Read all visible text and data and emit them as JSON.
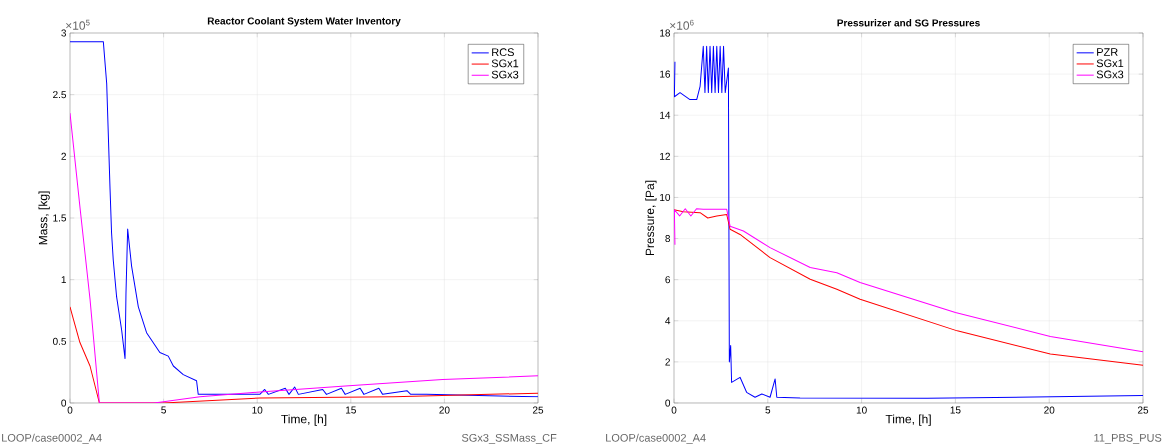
{
  "chart_data": [
    {
      "type": "line",
      "title": "Reactor Coolant System Water Inventory",
      "xlabel": "Time, [h]",
      "ylabel": "Mass, [kg]",
      "annotations": [
        "×10$^{5}$",
        "LOOP/case0002_A4",
        "SGx3_SSMass_CF"
      ],
      "xlim": [
        0,
        25
      ],
      "ylim": [
        0,
        3
      ],
      "xticks": [
        0,
        5,
        10,
        15,
        20,
        25
      ],
      "yticks": [
        0,
        0.5,
        1,
        1.5,
        2,
        2.5,
        3
      ],
      "grid": true,
      "legend": "top right",
      "line_style": "solid",
      "marker": "none",
      "series": [
        {
          "name": "RCS",
          "color": "#0000ff",
          "x": [
            0,
            1.78,
            1.96,
            2.14,
            2.22,
            2.31,
            2.49,
            2.76,
            2.94,
            2.99,
            3.08,
            3.29,
            3.65,
            4.09,
            4.8,
            5.25,
            5.52,
            6.05,
            6.76,
            6.85,
            10.14,
            10.4,
            10.6,
            11.5,
            11.7,
            12.0,
            12.2,
            13.5,
            13.7,
            14.5,
            14.7,
            15.5,
            15.7,
            16.5,
            16.7,
            18,
            18.2,
            19.04,
            25
          ],
          "values": [
            2.93,
            2.93,
            2.59,
            1.73,
            1.38,
            1.16,
            0.86,
            0.59,
            0.36,
            0.89,
            1.41,
            1.11,
            0.78,
            0.57,
            0.41,
            0.38,
            0.3,
            0.23,
            0.18,
            0.07,
            0.07,
            0.11,
            0.07,
            0.12,
            0.07,
            0.13,
            0.07,
            0.11,
            0.07,
            0.12,
            0.07,
            0.12,
            0.07,
            0.12,
            0.07,
            0.1,
            0.07,
            0.07,
            0.05
          ]
        },
        {
          "name": "SGx1",
          "color": "#ff0000",
          "x": [
            0,
            0.18,
            0.53,
            1.07,
            1.57,
            5,
            10.14,
            17.3,
            25
          ],
          "values": [
            0.78,
            0.68,
            0.49,
            0.3,
            0,
            0,
            0.04,
            0.05,
            0.08
          ]
        },
        {
          "name": "SGx3",
          "color": "#ff00ff",
          "x": [
            0,
            0.53,
            1.07,
            1.57,
            4.5,
            6.94,
            10.14,
            14.9,
            19.9,
            25
          ],
          "values": [
            2.35,
            1.59,
            0.84,
            0,
            0,
            0.05,
            0.09,
            0.14,
            0.19,
            0.22
          ]
        }
      ]
    },
    {
      "type": "line",
      "title": "Pressurizer and SG Pressures",
      "xlabel": "Time, [h]",
      "ylabel": "Pressure, [Pa]",
      "annotations": [
        "×10$^{6}$",
        "LOOP/case0002_A4",
        "11_PBS_PUS"
      ],
      "xlim": [
        0,
        25
      ],
      "ylim": [
        0,
        18
      ],
      "xticks": [
        0,
        5,
        10,
        15,
        20,
        25
      ],
      "yticks": [
        0,
        2,
        4,
        6,
        8,
        10,
        12,
        14,
        16,
        18
      ],
      "grid": true,
      "legend": "top right",
      "line_style": "solid",
      "marker": "none",
      "series": [
        {
          "name": "PZR",
          "color": "#0000ff",
          "x": [
            0.05,
            0.02,
            0.32,
            0.85,
            1.21,
            1.39,
            1.56,
            1.65,
            1.74,
            1.83,
            1.92,
            2.01,
            2.1,
            2.19,
            2.28,
            2.37,
            2.46,
            2.55,
            2.64,
            2.73,
            2.9,
            2.95,
            3.02,
            3.07,
            3.52,
            3.87,
            4.32,
            4.68,
            5.12,
            5.39,
            5.48,
            6.72,
            13.5,
            25
          ],
          "values": [
            16.6,
            14.9,
            15.1,
            14.76,
            14.76,
            15.4,
            17.35,
            15.1,
            17.35,
            15.1,
            17.35,
            15.1,
            17.35,
            15.1,
            17.35,
            15.1,
            17.35,
            15.1,
            17.35,
            15.1,
            16.3,
            2.0,
            2.8,
            1.0,
            1.25,
            0.52,
            0.28,
            0.44,
            0.28,
            1.17,
            0.28,
            0.24,
            0.23,
            0.36
          ]
        },
        {
          "name": "SGx1",
          "color": "#ff0000",
          "x": [
            0,
            0.5,
            1.39,
            1.8,
            2.28,
            2.81,
            2.99,
            3.52,
            5.12,
            7.26,
            8.68,
            9.92,
            15.1,
            20.06,
            25
          ],
          "values": [
            9.4,
            9.3,
            9.26,
            9.0,
            9.1,
            9.17,
            8.45,
            8.2,
            7.07,
            6.02,
            5.53,
            5.05,
            3.51,
            2.38,
            1.84
          ]
        },
        {
          "name": "SGx3",
          "color": "#ff00ff",
          "x": [
            0.05,
            0.02,
            0.3,
            0.6,
            0.9,
            1.2,
            1.56,
            2.81,
            2.99,
            3.7,
            5.12,
            7.26,
            8.68,
            9.92,
            15.0,
            20.06,
            25
          ],
          "values": [
            7.7,
            9.4,
            9.1,
            9.45,
            9.1,
            9.45,
            9.42,
            9.42,
            8.6,
            8.37,
            7.56,
            6.59,
            6.34,
            5.86,
            4.4,
            3.24,
            2.49
          ]
        }
      ]
    }
  ]
}
